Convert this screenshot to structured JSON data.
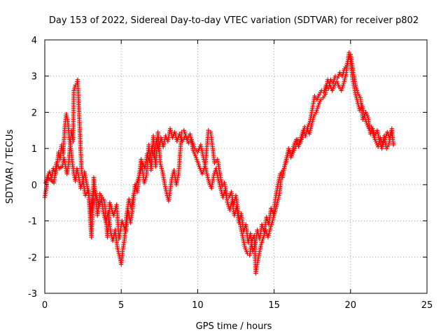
{
  "chart_data": {
    "type": "scatter",
    "title": "Day 153 of 2022, Sidereal Day-to-day VTEC variation (SDTVAR) for receiver p802",
    "xlabel": "GPS time / hours",
    "ylabel": "SDTVAR / TECUs",
    "xlim": [
      0,
      25
    ],
    "ylim": [
      -3,
      4
    ],
    "x_ticks": [
      0,
      5,
      10,
      15,
      20,
      25
    ],
    "y_ticks": [
      -3,
      -2,
      -1,
      0,
      1,
      2,
      3,
      4
    ],
    "x_tick_labels": [
      "0",
      "5",
      "10",
      "15",
      "20",
      "25"
    ],
    "y_tick_labels": [
      "-3",
      "-2",
      "-1",
      "0",
      "1",
      "2",
      "3",
      "4"
    ],
    "grid": true,
    "marker": "plus",
    "series": [
      {
        "name": "SDTVAR",
        "color": "#ff0000",
        "points": [
          [
            0.0,
            -0.35
          ],
          [
            0.1,
            -0.1
          ],
          [
            0.2,
            0.25
          ],
          [
            0.3,
            0.35
          ],
          [
            0.45,
            0.2
          ],
          [
            0.55,
            0.45
          ],
          [
            0.7,
            0.3
          ],
          [
            0.8,
            0.55
          ],
          [
            0.9,
            0.9
          ],
          [
            1.0,
            0.7
          ],
          [
            1.1,
            1.1
          ],
          [
            1.2,
            0.85
          ],
          [
            1.3,
            1.55
          ],
          [
            1.4,
            1.95
          ],
          [
            1.5,
            1.75
          ],
          [
            1.6,
            1.3
          ],
          [
            1.7,
            1.0
          ],
          [
            1.8,
            0.6
          ],
          [
            1.9,
            0.3
          ],
          [
            2.0,
            0.1
          ],
          [
            2.1,
            0.45
          ],
          [
            2.2,
            0.25
          ],
          [
            2.35,
            -0.1
          ],
          [
            2.5,
            0.1
          ],
          [
            2.6,
            0.35
          ],
          [
            2.75,
            0.0
          ],
          [
            2.9,
            -0.35
          ],
          [
            3.0,
            -0.8
          ],
          [
            3.1,
            -0.5
          ],
          [
            3.25,
            -0.1
          ],
          [
            3.4,
            -0.35
          ],
          [
            3.55,
            -0.6
          ],
          [
            3.7,
            -0.4
          ],
          [
            3.85,
            -0.8
          ],
          [
            4.0,
            -1.05
          ],
          [
            4.15,
            -0.75
          ],
          [
            4.3,
            -1.3
          ],
          [
            4.45,
            -1.55
          ],
          [
            4.6,
            -1.25
          ],
          [
            4.75,
            -1.75
          ],
          [
            4.9,
            -2.0
          ],
          [
            5.0,
            -2.2
          ],
          [
            5.1,
            -1.8
          ],
          [
            5.2,
            -1.55
          ],
          [
            5.35,
            -0.85
          ],
          [
            5.5,
            -0.4
          ],
          [
            5.65,
            -0.65
          ],
          [
            5.8,
            -0.3
          ],
          [
            5.95,
            -0.05
          ],
          [
            6.1,
            0.15
          ],
          [
            6.25,
            0.35
          ],
          [
            6.4,
            0.6
          ],
          [
            6.55,
            0.45
          ],
          [
            6.7,
            0.85
          ],
          [
            6.85,
            0.65
          ],
          [
            7.0,
            1.05
          ],
          [
            7.15,
            0.75
          ],
          [
            7.3,
            1.25
          ],
          [
            7.45,
            0.95
          ],
          [
            7.6,
            1.3
          ],
          [
            7.75,
            1.05
          ],
          [
            7.9,
            1.35
          ],
          [
            8.05,
            1.2
          ],
          [
            8.2,
            1.55
          ],
          [
            8.35,
            1.3
          ],
          [
            8.5,
            1.45
          ],
          [
            8.65,
            1.2
          ],
          [
            8.8,
            1.4
          ],
          [
            9.0,
            1.2
          ],
          [
            9.2,
            1.35
          ],
          [
            9.4,
            1.15
          ],
          [
            9.6,
            1.25
          ],
          [
            9.8,
            1.0
          ],
          [
            10.0,
            0.9
          ],
          [
            10.2,
            1.1
          ],
          [
            10.4,
            0.7
          ],
          [
            10.6,
            0.3
          ],
          [
            10.75,
            0.05
          ],
          [
            10.9,
            -0.1
          ],
          [
            11.05,
            0.25
          ],
          [
            11.2,
            0.45
          ],
          [
            11.35,
            0.15
          ],
          [
            11.5,
            -0.1
          ],
          [
            11.65,
            -0.35
          ],
          [
            11.8,
            -0.15
          ],
          [
            11.95,
            -0.5
          ],
          [
            12.1,
            -0.7
          ],
          [
            12.25,
            -0.45
          ],
          [
            12.4,
            -0.85
          ],
          [
            12.55,
            -0.6
          ],
          [
            12.7,
            -1.05
          ],
          [
            12.85,
            -0.8
          ],
          [
            13.0,
            -1.3
          ],
          [
            13.15,
            -1.1
          ],
          [
            13.3,
            -1.6
          ],
          [
            13.45,
            -1.35
          ],
          [
            13.6,
            -1.85
          ],
          [
            13.75,
            -1.7
          ],
          [
            13.9,
            -1.25
          ],
          [
            14.05,
            -1.5
          ],
          [
            14.2,
            -1.1
          ],
          [
            14.35,
            -1.3
          ],
          [
            14.5,
            -0.9
          ],
          [
            14.65,
            -1.1
          ],
          [
            14.8,
            -0.65
          ],
          [
            14.95,
            -0.8
          ],
          [
            15.1,
            -0.35
          ],
          [
            15.25,
            0.0
          ],
          [
            15.4,
            0.3
          ],
          [
            15.55,
            0.2
          ],
          [
            15.7,
            0.55
          ],
          [
            15.85,
            0.8
          ],
          [
            16.0,
            0.95
          ],
          [
            16.15,
            0.85
          ],
          [
            16.3,
            1.1
          ],
          [
            16.45,
            1.25
          ],
          [
            16.6,
            1.05
          ],
          [
            16.75,
            1.3
          ],
          [
            16.9,
            1.5
          ],
          [
            17.05,
            1.35
          ],
          [
            17.2,
            1.6
          ],
          [
            17.35,
            1.75
          ],
          [
            17.5,
            2.1
          ],
          [
            17.65,
            2.45
          ],
          [
            17.8,
            2.35
          ],
          [
            17.95,
            2.5
          ],
          [
            18.1,
            2.6
          ],
          [
            18.25,
            2.55
          ],
          [
            18.4,
            2.75
          ],
          [
            18.55,
            2.65
          ],
          [
            18.7,
            2.9
          ],
          [
            18.85,
            2.8
          ],
          [
            19.0,
            3.0
          ],
          [
            19.15,
            2.95
          ],
          [
            19.3,
            3.1
          ],
          [
            19.45,
            3.0
          ],
          [
            19.6,
            3.2
          ],
          [
            19.75,
            3.3
          ],
          [
            19.85,
            3.45
          ],
          [
            19.95,
            3.55
          ],
          [
            20.05,
            3.2
          ],
          [
            20.15,
            2.9
          ],
          [
            20.3,
            2.55
          ],
          [
            20.45,
            2.3
          ],
          [
            20.6,
            2.05
          ],
          [
            20.75,
            2.2
          ],
          [
            20.9,
            1.9
          ],
          [
            21.05,
            1.7
          ],
          [
            21.2,
            1.55
          ],
          [
            21.35,
            1.6
          ],
          [
            21.5,
            1.35
          ],
          [
            21.65,
            1.2
          ],
          [
            21.8,
            1.05
          ],
          [
            21.95,
            1.3
          ],
          [
            22.1,
            1.1
          ],
          [
            22.25,
            1.25
          ],
          [
            22.4,
            1.45
          ],
          [
            22.55,
            1.3
          ],
          [
            22.7,
            1.55
          ],
          [
            22.8,
            1.1
          ],
          [
            0.05,
            0.05
          ],
          [
            0.15,
            0.2
          ],
          [
            0.35,
            0.15
          ],
          [
            0.6,
            0.05
          ],
          [
            0.75,
            0.6
          ],
          [
            0.95,
            0.45
          ],
          [
            1.15,
            0.5
          ],
          [
            1.25,
            0.75
          ],
          [
            1.45,
            0.3
          ],
          [
            1.55,
            0.55
          ],
          [
            1.75,
            1.5
          ],
          [
            1.85,
            1.2
          ],
          [
            1.9,
            2.6
          ],
          [
            2.0,
            2.75
          ],
          [
            2.1,
            2.8
          ],
          [
            2.15,
            2.9
          ],
          [
            2.4,
            0.4
          ],
          [
            2.65,
            -0.3
          ],
          [
            2.85,
            -0.15
          ],
          [
            3.05,
            -1.45
          ],
          [
            3.2,
            0.2
          ],
          [
            3.45,
            -0.85
          ],
          [
            3.6,
            -0.25
          ],
          [
            3.9,
            -0.45
          ],
          [
            4.1,
            -1.45
          ],
          [
            4.25,
            -0.5
          ],
          [
            4.5,
            -0.85
          ],
          [
            4.7,
            -0.55
          ],
          [
            4.85,
            -1.5
          ],
          [
            5.05,
            -1.0
          ],
          [
            5.3,
            -1.3
          ],
          [
            5.45,
            -0.7
          ],
          [
            5.6,
            -1.05
          ],
          [
            5.75,
            -0.65
          ],
          [
            5.9,
            0.0
          ],
          [
            6.05,
            -0.2
          ],
          [
            6.3,
            0.7
          ],
          [
            6.5,
            0.05
          ],
          [
            6.65,
            0.25
          ],
          [
            6.8,
            1.1
          ],
          [
            6.95,
            0.4
          ],
          [
            7.1,
            1.35
          ],
          [
            7.25,
            0.5
          ],
          [
            7.4,
            1.45
          ],
          [
            7.55,
            0.6
          ],
          [
            7.7,
            0.35
          ],
          [
            7.85,
            0.0
          ],
          [
            8.0,
            -0.3
          ],
          [
            8.1,
            -0.45
          ],
          [
            8.3,
            0.15
          ],
          [
            8.45,
            0.4
          ],
          [
            8.6,
            0.0
          ],
          [
            8.75,
            0.3
          ],
          [
            8.95,
            1.45
          ],
          [
            9.1,
            1.5
          ],
          [
            9.3,
            1.25
          ],
          [
            9.5,
            1.4
          ],
          [
            9.7,
            0.95
          ],
          [
            9.9,
            0.75
          ],
          [
            10.1,
            0.5
          ],
          [
            10.3,
            0.3
          ],
          [
            10.5,
            0.55
          ],
          [
            10.7,
            1.5
          ],
          [
            10.85,
            1.45
          ],
          [
            11.1,
            0.6
          ],
          [
            11.3,
            0.7
          ],
          [
            11.45,
            0.3
          ],
          [
            11.6,
            -0.05
          ],
          [
            11.75,
            0.05
          ],
          [
            11.9,
            -0.3
          ],
          [
            12.05,
            -0.35
          ],
          [
            12.2,
            -0.2
          ],
          [
            12.35,
            -0.55
          ],
          [
            12.5,
            -0.3
          ],
          [
            12.65,
            -0.75
          ],
          [
            12.8,
            -1.15
          ],
          [
            12.95,
            -1.45
          ],
          [
            13.1,
            -1.75
          ],
          [
            13.25,
            -1.9
          ],
          [
            13.4,
            -1.95
          ],
          [
            13.55,
            -1.55
          ],
          [
            13.7,
            -1.4
          ],
          [
            13.8,
            -2.45
          ],
          [
            13.85,
            -2.3
          ],
          [
            14.0,
            -1.95
          ],
          [
            14.15,
            -1.65
          ],
          [
            14.3,
            -1.45
          ],
          [
            14.45,
            -1.25
          ],
          [
            14.6,
            -1.45
          ],
          [
            14.75,
            -1.2
          ],
          [
            14.9,
            -1.0
          ],
          [
            15.05,
            -0.75
          ],
          [
            15.2,
            -0.5
          ],
          [
            15.35,
            -0.25
          ],
          [
            15.5,
            0.35
          ],
          [
            15.65,
            0.45
          ],
          [
            15.8,
            0.65
          ],
          [
            15.95,
            1.0
          ],
          [
            16.1,
            0.75
          ],
          [
            16.25,
            0.9
          ],
          [
            16.4,
            1.05
          ],
          [
            16.55,
            1.25
          ],
          [
            16.7,
            1.15
          ],
          [
            16.85,
            1.3
          ],
          [
            17.0,
            1.6
          ],
          [
            17.15,
            1.55
          ],
          [
            17.3,
            1.4
          ],
          [
            17.45,
            1.65
          ],
          [
            17.6,
            1.9
          ],
          [
            17.75,
            2.0
          ],
          [
            17.9,
            2.2
          ],
          [
            18.05,
            2.35
          ],
          [
            18.2,
            2.4
          ],
          [
            18.35,
            2.5
          ],
          [
            18.5,
            2.9
          ],
          [
            18.65,
            2.75
          ],
          [
            18.8,
            2.6
          ],
          [
            18.95,
            2.75
          ],
          [
            19.1,
            2.85
          ],
          [
            19.25,
            2.7
          ],
          [
            19.4,
            2.6
          ],
          [
            19.55,
            2.8
          ],
          [
            19.7,
            3.05
          ],
          [
            19.9,
            3.65
          ],
          [
            20.0,
            3.6
          ],
          [
            20.2,
            3.05
          ],
          [
            20.35,
            2.7
          ],
          [
            20.5,
            2.5
          ],
          [
            20.65,
            2.4
          ],
          [
            20.8,
            1.8
          ],
          [
            21.0,
            2.0
          ],
          [
            21.15,
            1.85
          ],
          [
            21.3,
            1.4
          ],
          [
            21.45,
            1.55
          ],
          [
            21.6,
            1.35
          ],
          [
            21.75,
            1.5
          ],
          [
            21.9,
            1.2
          ],
          [
            22.05,
            1.0
          ],
          [
            22.2,
            1.35
          ],
          [
            22.35,
            1.0
          ],
          [
            22.5,
            1.1
          ],
          [
            22.65,
            1.45
          ],
          [
            22.75,
            1.3
          ]
        ]
      }
    ]
  }
}
